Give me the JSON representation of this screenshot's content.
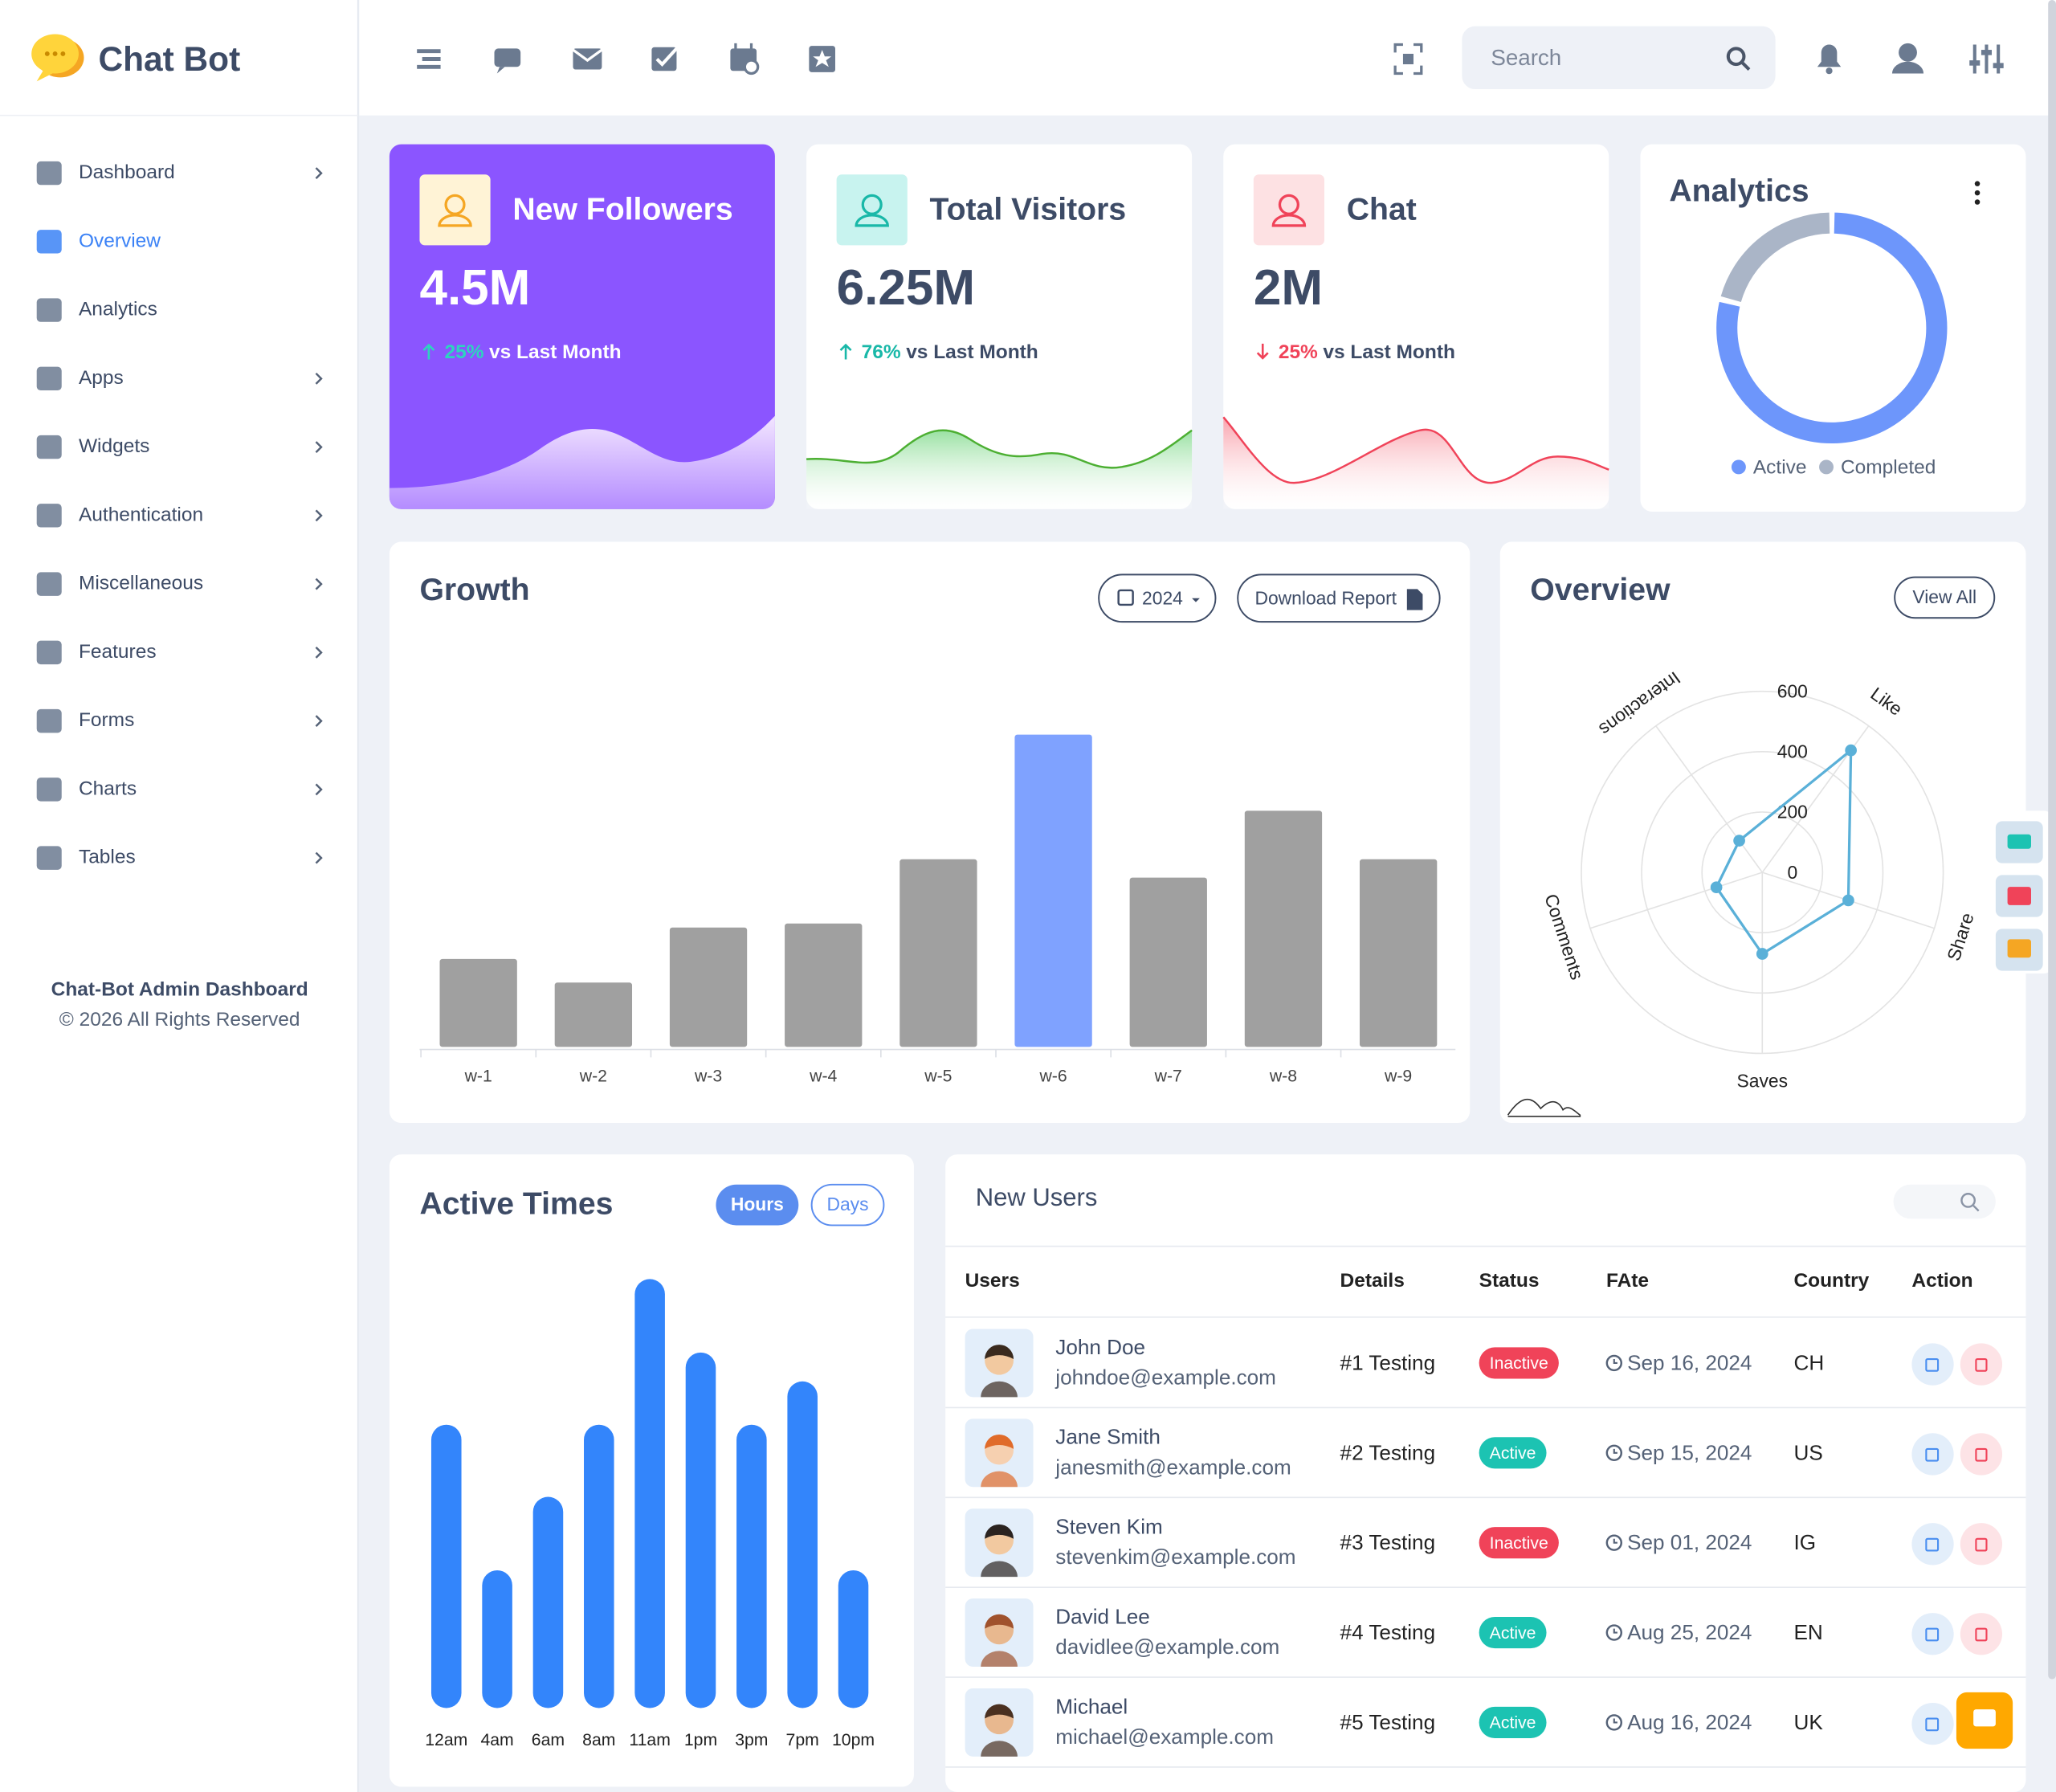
{
  "sidebar": {
    "brand": "Chat Bot",
    "active_index": 1,
    "menu": [
      {
        "label": "Dashboard",
        "submenu": true
      },
      {
        "label": "Overview",
        "submenu": false
      },
      {
        "label": "Analytics",
        "submenu": false
      },
      {
        "label": "Apps",
        "submenu": true
      },
      {
        "label": "Widgets",
        "submenu": true
      },
      {
        "label": "Authentication",
        "submenu": true
      },
      {
        "label": "Miscellaneous",
        "submenu": true
      },
      {
        "label": "Features",
        "submenu": true
      },
      {
        "label": "Forms",
        "submenu": true
      },
      {
        "label": "Charts",
        "submenu": true
      },
      {
        "label": "Tables",
        "submenu": true
      }
    ],
    "footer": {
      "title": "Chat-Bot Admin Dashboard",
      "copyright": "© 2026 All Rights Reserved"
    }
  },
  "topbar": {
    "search_placeholder": "Search"
  },
  "stat_cards": [
    {
      "title": "New Followers",
      "value": "4.5M",
      "change": "25%",
      "trend": "up",
      "period": "vs Last Month",
      "bg": "#8b55ff",
      "text_color": "#ffffff",
      "change_color": "#2dd4bf",
      "icon_bg": "#fff3d6",
      "icon_color": "#f5a623"
    },
    {
      "title": "Total Visitors",
      "value": "6.25M",
      "change": "76%",
      "trend": "up",
      "period": "vs Last Month",
      "bg": "#ffffff",
      "text_color": "#3d4b66",
      "change_color": "#19b8a8",
      "icon_bg": "#c8f3ef",
      "icon_color": "#19b8a8"
    },
    {
      "title": "Chat",
      "value": "2M",
      "change": "25%",
      "trend": "down",
      "period": "vs Last Month",
      "bg": "#ffffff",
      "text_color": "#3d4b66",
      "change_color": "#f04359",
      "icon_bg": "#fde1e3",
      "icon_color": "#f04359"
    }
  ],
  "analytics": {
    "title": "Analytics",
    "chart_data": {
      "type": "donut",
      "series": [
        {
          "name": "Active",
          "color": "#6d96fb",
          "value": 79
        },
        {
          "name": "Completed",
          "color": "#aab5c7",
          "value": 21
        }
      ]
    }
  },
  "growth": {
    "title": "Growth",
    "year": "2024",
    "download": "Download Report",
    "chart_data": {
      "type": "bar",
      "categories": [
        "w-1",
        "w-2",
        "w-3",
        "w-4",
        "w-5",
        "w-6",
        "w-7",
        "w-8",
        "w-9"
      ],
      "values": [
        67,
        49,
        91,
        94,
        143,
        238,
        129,
        180,
        143
      ],
      "color": "#a0a0a0",
      "highlight_color": "#7fa2ff",
      "highlight_index": 5,
      "ylim": [
        0,
        250
      ]
    }
  },
  "overview": {
    "title": "Overview",
    "view_all": "View All",
    "chart_data": {
      "type": "radar",
      "categories": [
        "Like",
        "Share",
        "Saves",
        "Comments",
        "Interactions"
      ],
      "values": [
        500,
        300,
        270,
        160,
        130
      ],
      "rlim": [
        0,
        600
      ],
      "rticks": [
        0,
        200,
        400,
        600
      ],
      "color": "#5ab0d8"
    }
  },
  "active_times": {
    "title": "Active Times",
    "toggles": [
      "Hours",
      "Days"
    ],
    "chart_data": {
      "type": "bar",
      "categories": [
        "12am",
        "4am",
        "6am",
        "8am",
        "11am",
        "1pm",
        "3pm",
        "7pm",
        "10pm"
      ],
      "values": [
        216,
        105,
        161,
        216,
        327,
        271,
        216,
        249,
        105
      ],
      "color": "#3385fb",
      "ylim": [
        0,
        340
      ]
    }
  },
  "new_users": {
    "title": "New Users",
    "columns": [
      "Users",
      "Details",
      "Status",
      "FAte",
      "Country",
      "Action"
    ],
    "rows": [
      {
        "name": "John Doe",
        "email": "johndoe@example.com",
        "details": "#1 Testing",
        "status": "Inactive",
        "status_color": "#f04359",
        "date": "Sep 16, 2024",
        "country": "CH"
      },
      {
        "name": "Jane Smith",
        "email": "janesmith@example.com",
        "details": "#2 Testing",
        "status": "Active",
        "status_color": "#1cc3b2",
        "date": "Sep 15, 2024",
        "country": "US"
      },
      {
        "name": "Steven Kim",
        "email": "stevenkim@example.com",
        "details": "#3 Testing",
        "status": "Inactive",
        "status_color": "#f04359",
        "date": "Sep 01, 2024",
        "country": "IG"
      },
      {
        "name": "David Lee",
        "email": "davidlee@example.com",
        "details": "#4 Testing",
        "status": "Active",
        "status_color": "#1cc3b2",
        "date": "Aug 25, 2024",
        "country": "EN"
      },
      {
        "name": "Michael",
        "email": "michael@example.com",
        "details": "#5 Testing",
        "status": "Active",
        "status_color": "#1cc3b2",
        "date": "Aug 16, 2024",
        "country": "UK"
      }
    ]
  }
}
